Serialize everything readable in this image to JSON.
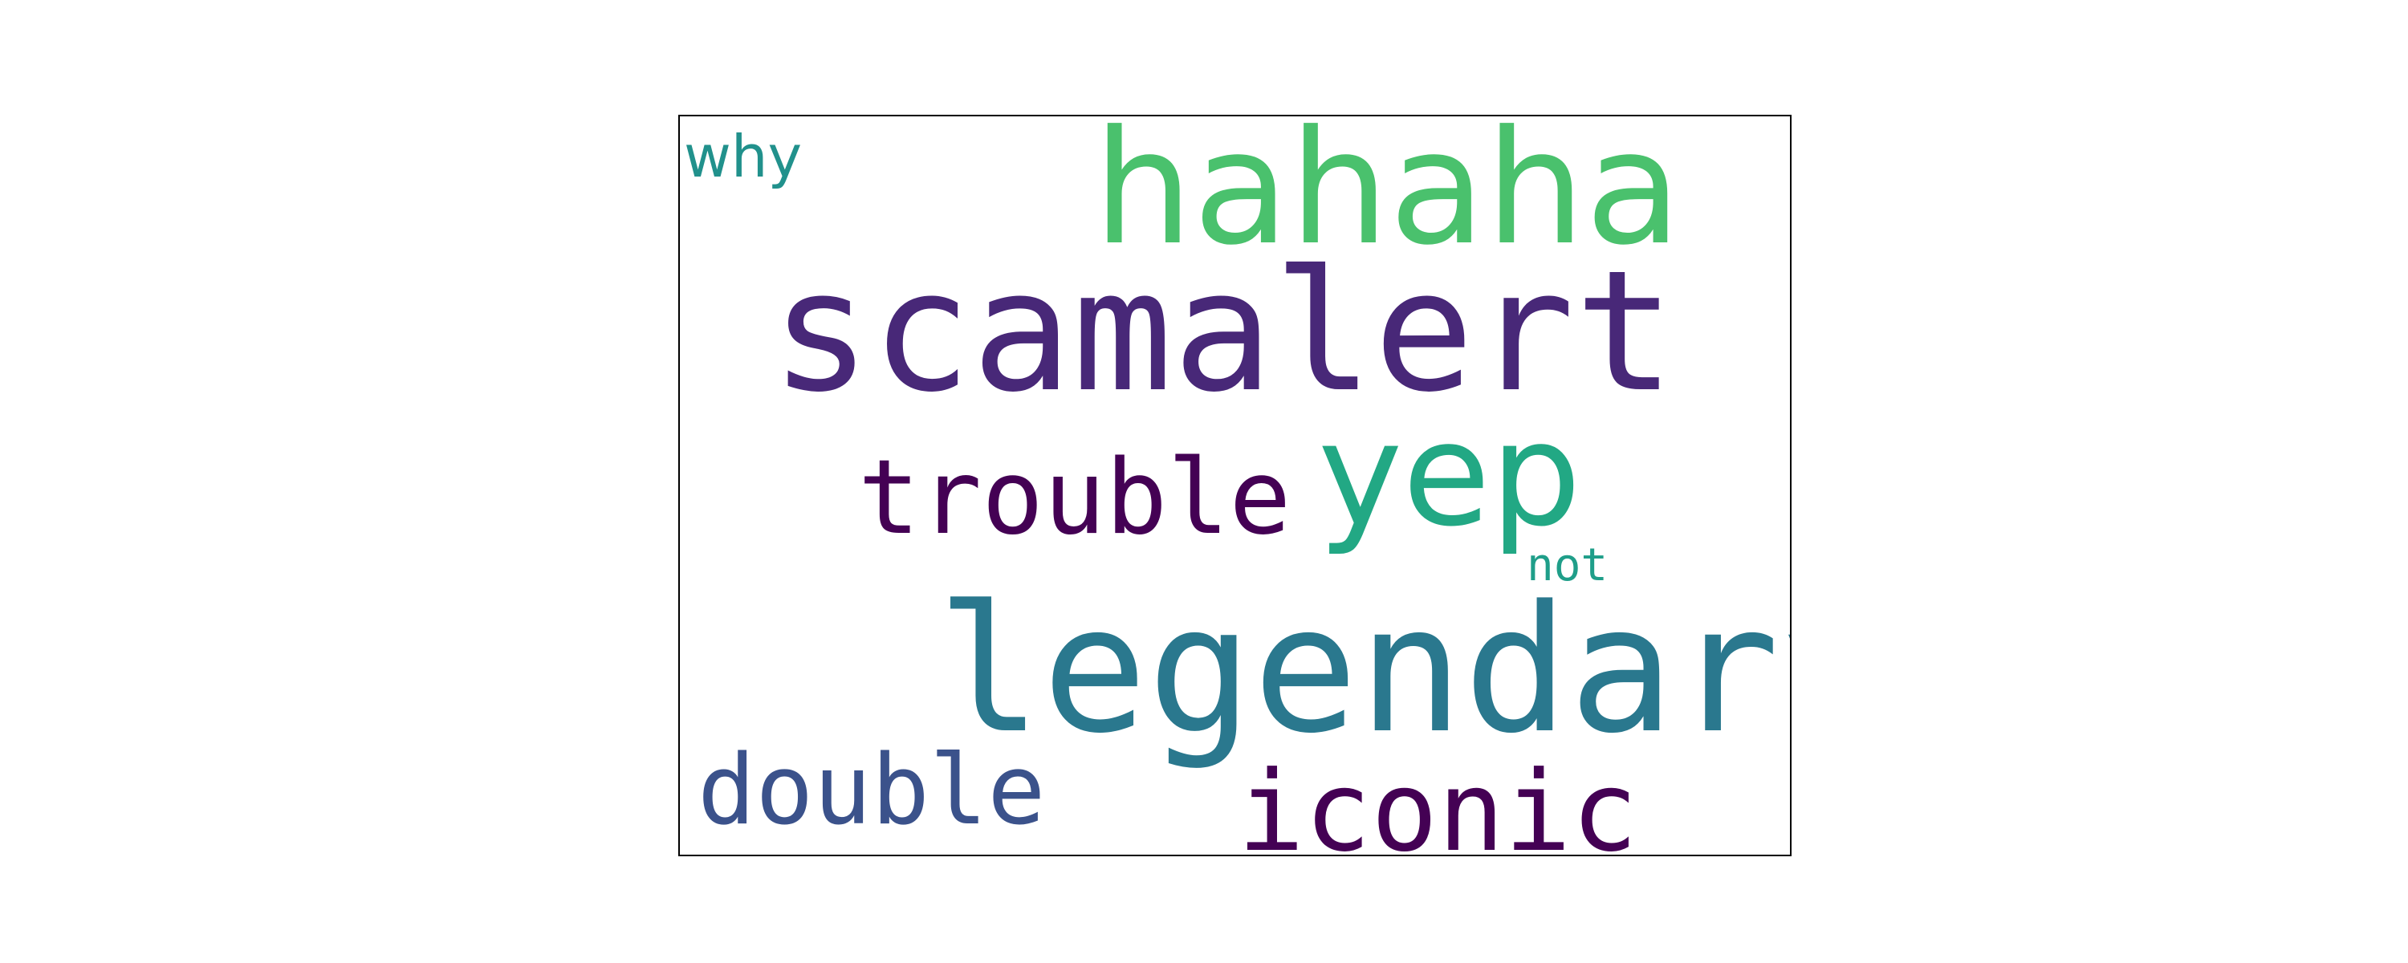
{
  "words": [
    {
      "id": "why",
      "text": "why",
      "color": "#21918c"
    },
    {
      "id": "hahaha",
      "text": "hahaha",
      "color": "#4ac16d"
    },
    {
      "id": "scamalert",
      "text": "scamalert",
      "color": "#482878"
    },
    {
      "id": "yep",
      "text": "yep",
      "color": "#22a884"
    },
    {
      "id": "trouble",
      "text": "trouble",
      "color": "#440154"
    },
    {
      "id": "not",
      "text": "not",
      "color": "#1f9e89"
    },
    {
      "id": "legendary",
      "text": "legendary",
      "color": "#2a788e"
    },
    {
      "id": "double",
      "text": "double",
      "color": "#3b528b"
    },
    {
      "id": "iconic",
      "text": "iconic",
      "color": "#440154"
    }
  ]
}
